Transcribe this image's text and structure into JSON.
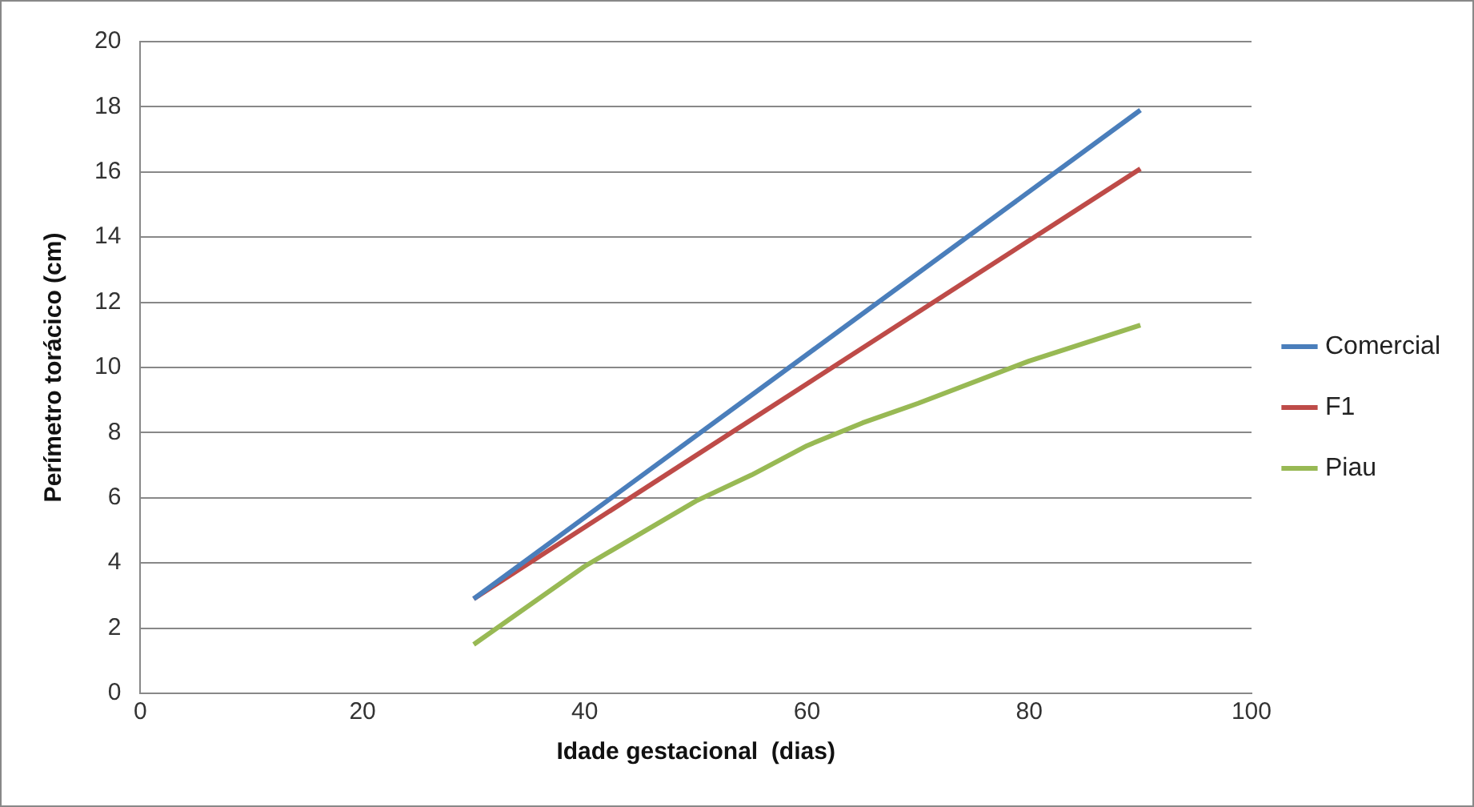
{
  "chart_data": {
    "type": "line",
    "xlabel": "Idade gestacional  (dias)",
    "ylabel": "Perímetro torácico (cm)",
    "xlim": [
      0,
      100
    ],
    "xticks": [
      0,
      20,
      40,
      60,
      80,
      100
    ],
    "ylim": [
      0,
      20
    ],
    "yticks": [
      0,
      2,
      4,
      6,
      8,
      10,
      12,
      14,
      16,
      18,
      20
    ],
    "grid": "y",
    "legend": "right",
    "marker": "none",
    "line_style": "solid",
    "series": [
      {
        "name": "Comercial",
        "color": "#4a7ebb",
        "x": [
          30,
          90
        ],
        "values": [
          2.9,
          17.9
        ]
      },
      {
        "name": "F1",
        "color": "#be4b48",
        "x": [
          30,
          90
        ],
        "values": [
          2.9,
          16.1
        ]
      },
      {
        "name": "Piau",
        "color": "#98b954",
        "x": [
          30,
          40,
          50,
          55,
          60,
          65,
          70,
          80,
          90
        ],
        "values": [
          1.5,
          3.9,
          5.9,
          6.7,
          7.6,
          8.3,
          8.9,
          10.2,
          11.3
        ]
      }
    ]
  }
}
